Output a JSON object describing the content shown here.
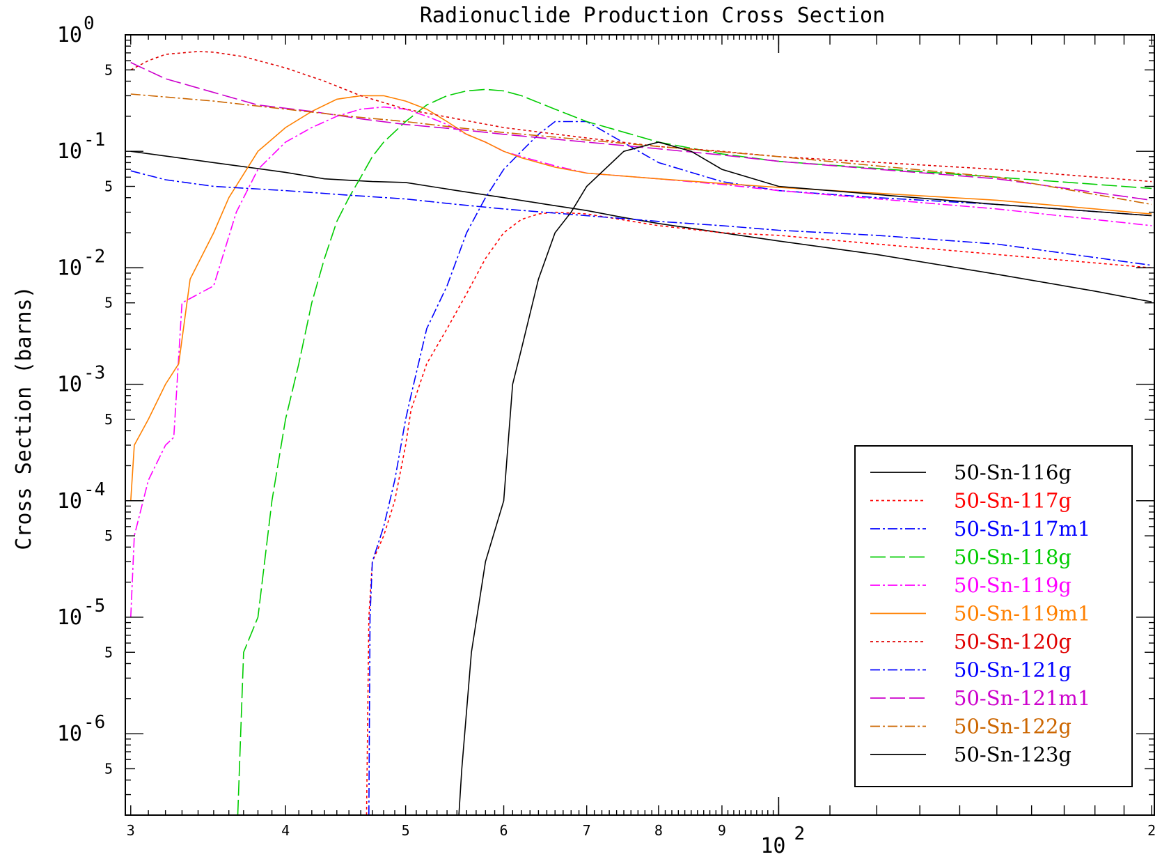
{
  "chart_data": {
    "type": "line",
    "title": "Radionuclide Production Cross Section",
    "xlabel": "",
    "ylabel": "Cross Section (barns)",
    "xscale": "log",
    "yscale": "log",
    "xlim": [
      29.7,
      201
    ],
    "ylim": [
      2e-07,
      1
    ],
    "x_ticks": [
      {
        "value": 30,
        "label": "3"
      },
      {
        "value": 40,
        "label": "4"
      },
      {
        "value": 50,
        "label": "5"
      },
      {
        "value": 60,
        "label": "6"
      },
      {
        "value": 70,
        "label": "7"
      },
      {
        "value": 80,
        "label": "8"
      },
      {
        "value": 90,
        "label": "9"
      },
      {
        "value": 200,
        "label": "2"
      }
    ],
    "x_decade_label": {
      "value": 100,
      "base": "10",
      "exp": "2"
    },
    "y_decades": [
      {
        "value": 1,
        "base": "10",
        "exp": "0"
      },
      {
        "value": 0.1,
        "base": "10",
        "exp": "-1"
      },
      {
        "value": 0.01,
        "base": "10",
        "exp": "-2"
      },
      {
        "value": 0.001,
        "base": "10",
        "exp": "-3"
      },
      {
        "value": 0.0001,
        "base": "10",
        "exp": "-4"
      },
      {
        "value": 1e-05,
        "base": "10",
        "exp": "-5"
      },
      {
        "value": 1e-06,
        "base": "10",
        "exp": "-6"
      }
    ],
    "y_minor_labeled": [
      {
        "value": 0.5,
        "label": "5"
      },
      {
        "value": 0.05,
        "label": "5"
      },
      {
        "value": 0.005,
        "label": "5"
      },
      {
        "value": 0.0005,
        "label": "5"
      },
      {
        "value": 5e-05,
        "label": "5"
      },
      {
        "value": 5e-06,
        "label": "5"
      },
      {
        "value": 5e-07,
        "label": "5"
      }
    ],
    "grid": false,
    "legend_position": "bottom-right",
    "series": [
      {
        "name": "50-Sn-116g",
        "color": "#000000",
        "dash": "solid",
        "x": [
          30,
          35,
          40,
          43,
          47,
          50,
          55,
          60,
          65,
          70,
          75,
          80,
          90,
          100,
          120,
          150,
          180,
          200
        ],
        "y": [
          0.1,
          0.08,
          0.066,
          0.058,
          0.055,
          0.054,
          0.046,
          0.04,
          0.035,
          0.031,
          0.027,
          0.024,
          0.02,
          0.017,
          0.013,
          0.0088,
          0.0063,
          0.0051
        ]
      },
      {
        "name": "50-Sn-117g",
        "color": "#ff0000",
        "dash": "4,4",
        "x": [
          46.5,
          46.7,
          47.0,
          48,
          49,
          50,
          50.5,
          52,
          54,
          56,
          58,
          60,
          62,
          64,
          66,
          70,
          80,
          90,
          100,
          120,
          150,
          200
        ],
        "y": [
          2e-07,
          1e-05,
          3e-05,
          5e-05,
          0.0001,
          0.0003,
          0.0006,
          0.0015,
          0.003,
          0.006,
          0.012,
          0.02,
          0.026,
          0.029,
          0.03,
          0.029,
          0.023,
          0.02,
          0.019,
          0.016,
          0.013,
          0.01
        ]
      },
      {
        "name": "50-Sn-117m1",
        "color": "#0000ff",
        "dash": "14,4,3,4",
        "x": [
          46.7,
          46.8,
          47,
          48,
          49,
          50,
          50.5,
          52,
          54,
          56,
          58,
          60,
          62,
          64,
          66,
          70,
          80,
          90,
          100,
          120,
          150,
          200
        ],
        "y": [
          2e-07,
          1e-05,
          3e-05,
          6e-05,
          0.00015,
          0.0005,
          0.0008,
          0.003,
          0.007,
          0.02,
          0.04,
          0.07,
          0.1,
          0.14,
          0.18,
          0.18,
          0.08,
          0.055,
          0.046,
          0.04,
          0.035,
          0.028
        ]
      },
      {
        "name": "50-Sn-118g",
        "color": "#00cc00",
        "dash": "22,6",
        "x": [
          36.6,
          36.8,
          37,
          38,
          39,
          40,
          41,
          42,
          43,
          44,
          45,
          46,
          47,
          48,
          50,
          52,
          54,
          56,
          58,
          60,
          62,
          66,
          70,
          80,
          90,
          100,
          150,
          200
        ],
        "y": [
          2e-07,
          1e-06,
          5e-06,
          1e-05,
          0.0001,
          0.0005,
          0.0015,
          0.005,
          0.012,
          0.025,
          0.04,
          0.06,
          0.09,
          0.12,
          0.18,
          0.25,
          0.3,
          0.33,
          0.34,
          0.33,
          0.3,
          0.23,
          0.18,
          0.12,
          0.095,
          0.082,
          0.06,
          0.048
        ]
      },
      {
        "name": "50-Sn-119g",
        "color": "#ff00ff",
        "dash": "14,4,3,4",
        "x": [
          30,
          30.2,
          31,
          32,
          32.5,
          33,
          35,
          36.5,
          38,
          40,
          42,
          44,
          46,
          48,
          50,
          52,
          54,
          56,
          58,
          60,
          62,
          66,
          70,
          80,
          90,
          100,
          150,
          200
        ],
        "y": [
          1e-05,
          5e-05,
          0.00015,
          0.0003,
          0.00035,
          0.005,
          0.007,
          0.03,
          0.07,
          0.12,
          0.16,
          0.2,
          0.23,
          0.24,
          0.23,
          0.2,
          0.17,
          0.14,
          0.12,
          0.1,
          0.09,
          0.075,
          0.065,
          0.058,
          0.052,
          0.046,
          0.032,
          0.023
        ]
      },
      {
        "name": "50-Sn-119m1",
        "color": "#ff8000",
        "dash": "solid",
        "x": [
          30,
          30.2,
          31,
          32,
          32.8,
          33.5,
          35,
          36,
          38,
          40,
          42,
          44,
          46,
          48,
          50,
          52,
          54,
          56,
          58,
          60,
          62,
          66,
          70,
          80,
          90,
          100,
          150,
          200
        ],
        "y": [
          0.0001,
          0.0003,
          0.0005,
          0.001,
          0.0015,
          0.008,
          0.02,
          0.04,
          0.1,
          0.16,
          0.22,
          0.28,
          0.3,
          0.3,
          0.27,
          0.23,
          0.18,
          0.14,
          0.12,
          0.1,
          0.088,
          0.073,
          0.065,
          0.058,
          0.053,
          0.049,
          0.038,
          0.029
        ]
      },
      {
        "name": "50-Sn-120g",
        "color": "#e00000",
        "dash": "4,4",
        "x": [
          30,
          31,
          32,
          34,
          35,
          37,
          40,
          43,
          46,
          50,
          55,
          60,
          70,
          80,
          90,
          100,
          150,
          200
        ],
        "y": [
          0.5,
          0.6,
          0.68,
          0.72,
          0.71,
          0.65,
          0.52,
          0.4,
          0.3,
          0.23,
          0.19,
          0.16,
          0.13,
          0.11,
          0.1,
          0.09,
          0.07,
          0.055
        ]
      },
      {
        "name": "50-Sn-121g",
        "color": "#0000ff",
        "dash": "14,4,3,4",
        "x": [
          30,
          32,
          35,
          40,
          45,
          50,
          55,
          60,
          70,
          80,
          90,
          100,
          120,
          150,
          200
        ],
        "y": [
          0.068,
          0.057,
          0.05,
          0.046,
          0.042,
          0.039,
          0.035,
          0.032,
          0.028,
          0.025,
          0.023,
          0.021,
          0.019,
          0.016,
          0.0105
        ]
      },
      {
        "name": "50-Sn-121m1",
        "color": "#cc00cc",
        "dash": "22,6",
        "x": [
          30,
          30.3,
          32,
          35,
          38,
          42,
          46,
          50,
          55,
          60,
          70,
          80,
          90,
          100,
          150,
          200
        ],
        "y": [
          0.58,
          0.55,
          0.42,
          0.32,
          0.25,
          0.22,
          0.19,
          0.17,
          0.155,
          0.14,
          0.12,
          0.105,
          0.093,
          0.082,
          0.058,
          0.038
        ]
      },
      {
        "name": "50-Sn-122g",
        "color": "#cc6600",
        "dash": "14,4,3,4",
        "x": [
          30,
          35,
          40,
          45,
          50,
          55,
          60,
          70,
          80,
          90,
          100,
          150,
          200
        ],
        "y": [
          0.31,
          0.27,
          0.23,
          0.2,
          0.18,
          0.16,
          0.145,
          0.125,
          0.11,
          0.099,
          0.09,
          0.06,
          0.035
        ]
      },
      {
        "name": "50-Sn-123g",
        "color": "#000000",
        "dash": "solid",
        "x": [
          55.2,
          55.5,
          56.5,
          58,
          60,
          61,
          62,
          64,
          66,
          68,
          70,
          75,
          80,
          85,
          90,
          100,
          150,
          200
        ],
        "y": [
          2e-07,
          5e-07,
          5e-06,
          3e-05,
          0.0001,
          0.001,
          0.002,
          0.008,
          0.02,
          0.03,
          0.05,
          0.1,
          0.12,
          0.1,
          0.07,
          0.05,
          0.035,
          0.028
        ]
      }
    ]
  }
}
